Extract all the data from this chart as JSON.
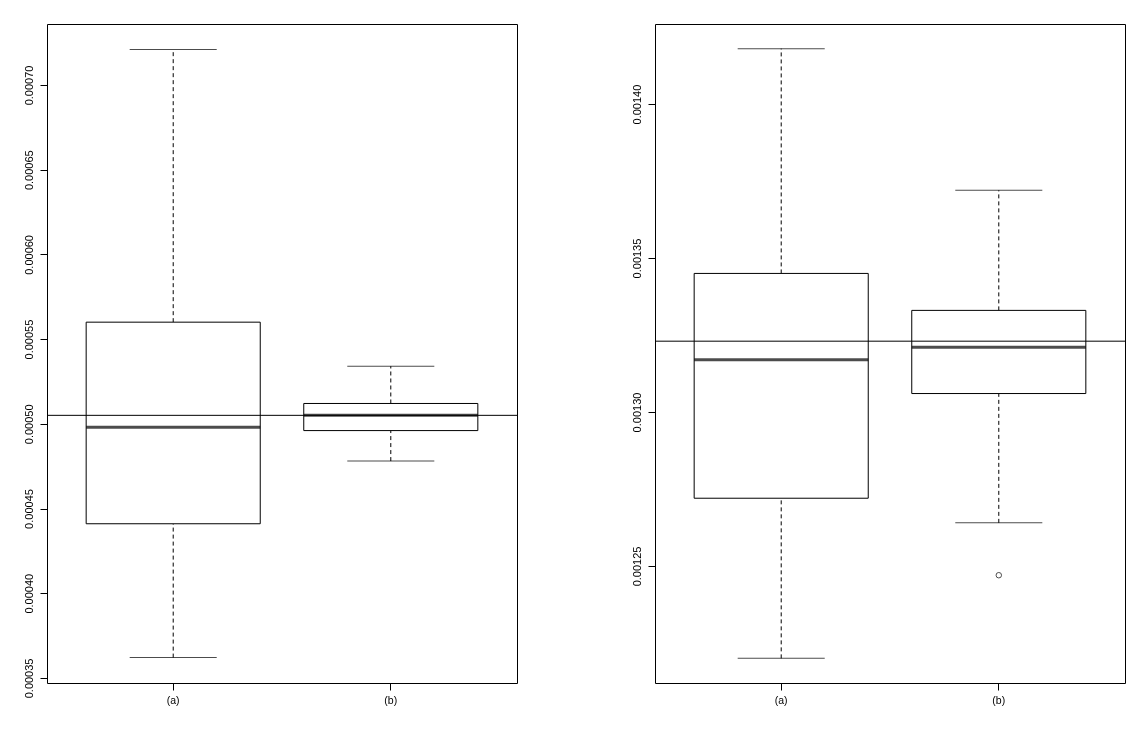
{
  "chart_data": [
    {
      "type": "box",
      "categories": [
        "(a)",
        "(b)"
      ],
      "color": "#000000",
      "boxes": [
        {
          "low": 0.000362,
          "q1": 0.000441,
          "median": 0.000498,
          "q3": 0.00056,
          "high": 0.000721
        },
        {
          "low": 0.000478,
          "q1": 0.000496,
          "median": 0.000505,
          "q3": 0.000512,
          "high": 0.000534
        }
      ],
      "ylim": [
        0.000347,
        0.000736
      ],
      "yticks": [
        0.00035,
        {
          "value": 0.0004,
          "label": "0.00040"
        },
        0.00045,
        {
          "value": 0.0005,
          "label": "0.00050"
        },
        0.00055,
        {
          "value": 0.0006,
          "label": "0.00060"
        },
        0.00065,
        {
          "value": 0.0007,
          "label": "0.00070"
        }
      ],
      "ref_lines": [
        {
          "axis": "y",
          "value": 0.000505
        }
      ]
    },
    {
      "type": "box",
      "categories": [
        "(a)",
        "(b)"
      ],
      "color": "#000000",
      "boxes": [
        {
          "low": 0.00122,
          "q1": 0.001272,
          "median": 0.001317,
          "q3": 0.001345,
          "high": 0.001418
        },
        {
          "low": 0.001264,
          "q1": 0.001306,
          "median": 0.001321,
          "q3": 0.001333,
          "high": 0.001372,
          "outliers": [
            0.001247
          ]
        }
      ],
      "ylim": [
        0.001212,
        0.001426
      ],
      "yticks": [
        0.00125,
        {
          "value": 0.0013,
          "label": "0.00130"
        },
        0.00135,
        {
          "value": 0.0014,
          "label": "0.00140"
        }
      ],
      "ref_lines": [
        {
          "axis": "y",
          "value": 0.001323
        }
      ]
    }
  ]
}
